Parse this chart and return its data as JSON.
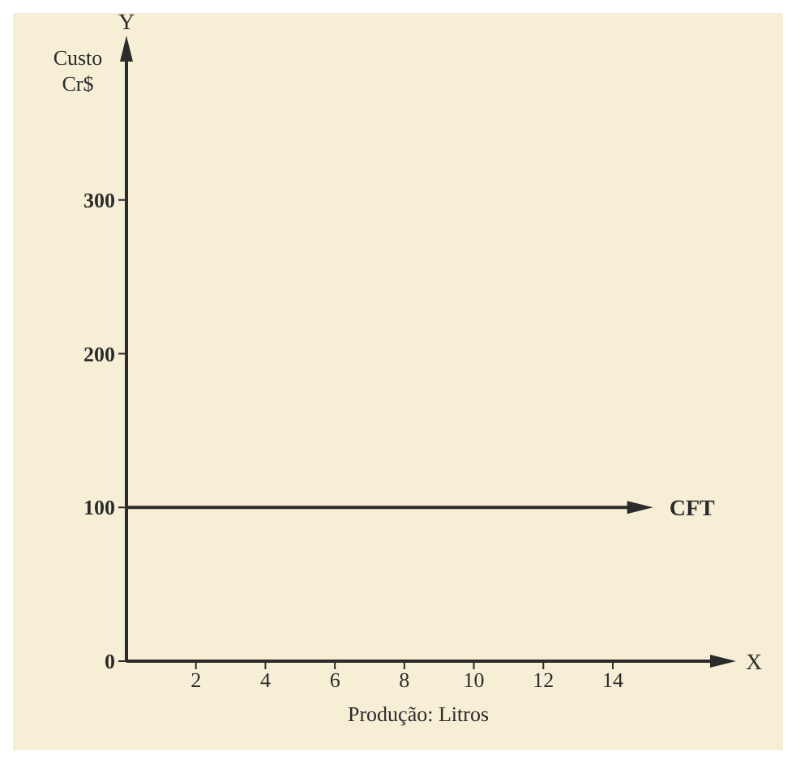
{
  "chart_data": {
    "type": "line",
    "xlabel": "Produção: Litros",
    "ylabel": "Custo Cr$",
    "annotations": [
      "X",
      "Y"
    ],
    "series": [
      {
        "name": "CFT",
        "color": "#2b2b2b",
        "x": [
          0,
          14.6
        ],
        "values": [
          100,
          100
        ]
      }
    ],
    "xlim": [
      0,
      16.8
    ],
    "ylim": [
      0,
      390
    ],
    "xticks": [
      2,
      4,
      6,
      8,
      10,
      12,
      14
    ],
    "yticks": [
      0,
      100,
      200,
      300
    ],
    "grid": false,
    "legend": false,
    "line_style": "solid"
  }
}
